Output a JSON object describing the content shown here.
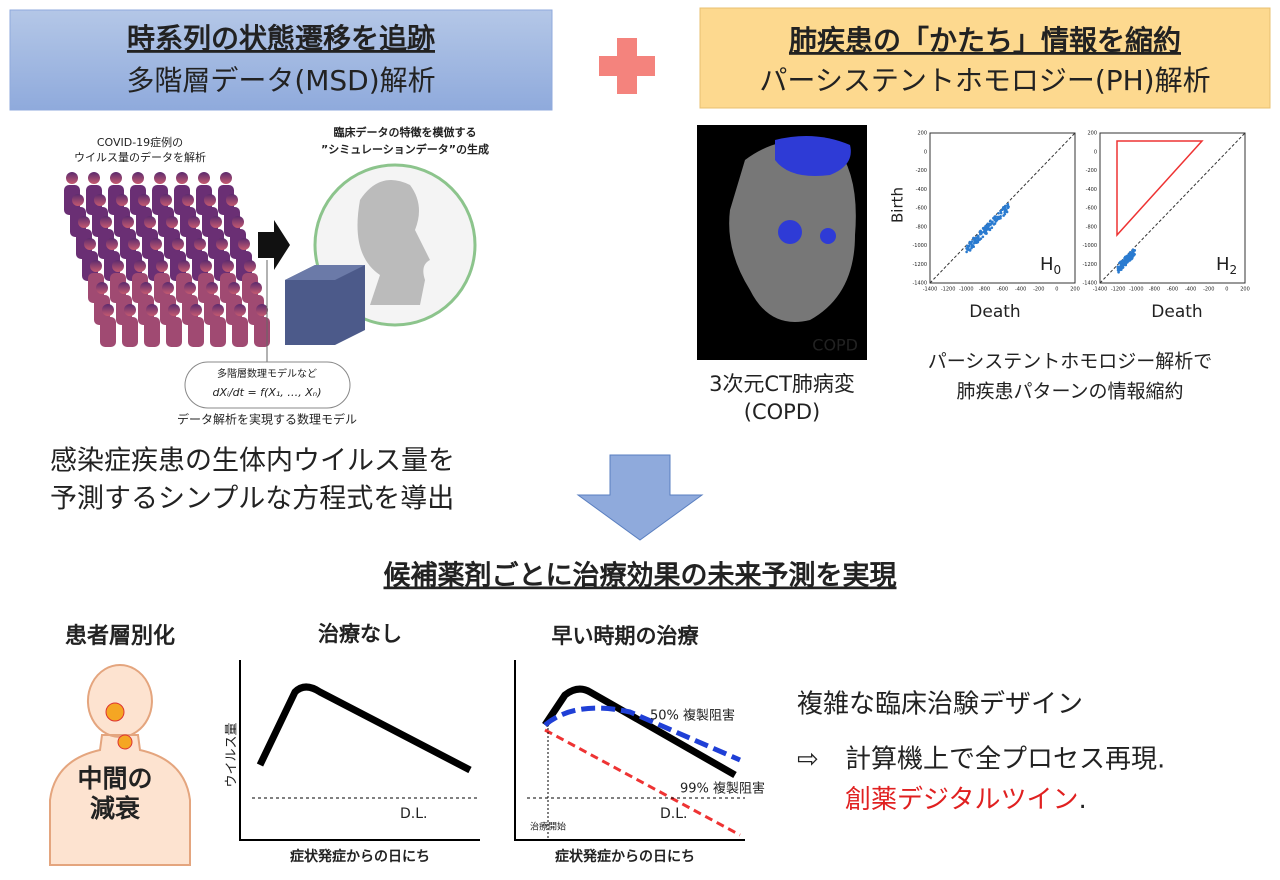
{
  "left_header": {
    "title": "時系列の状態遷移を追跡",
    "subtitle": "多階層データ(MSD)解析"
  },
  "right_header": {
    "title": "肺疾患の「かたち」情報を縮約",
    "subtitle": "パーシステントホモロジー(PH)解析"
  },
  "msd_figure": {
    "data_caption": [
      "COVID-19症例の",
      "ウイルス量のデータを解析"
    ],
    "sim_caption": [
      "臨床データの特徴を模倣する",
      "”シミュレーションデータ”の生成"
    ],
    "model_label": "多階層数理モデルなど",
    "equation": "dXᵢ/dt = f(X₁, …, Xₙ)",
    "model_caption": "データ解析を実現する数理モデル"
  },
  "msd_summary": [
    "感染症疾患の生体内ウイルス量を",
    "予測するシンプルな方程式を導出"
  ],
  "ct": {
    "image_label": "COPD",
    "caption": [
      "3次元CT肺病変",
      "(COPD)"
    ]
  },
  "ph": {
    "y_label": "Birth",
    "x_label": "Death",
    "xticks": [
      -1400,
      -1200,
      -1000,
      -800,
      -600,
      -400,
      -200,
      0,
      200
    ],
    "yticks": [
      200,
      0,
      -200,
      -400,
      -600,
      -800,
      -1000,
      -1200,
      -1400
    ],
    "panels": [
      {
        "label": "H",
        "sub": "0"
      },
      {
        "label": "H",
        "sub": "2"
      }
    ],
    "caption": [
      "パーシステントホモロジー解析で",
      "肺疾患パターンの情報縮約"
    ]
  },
  "conclusion": "候補薬剤ごとに治療効果の未来予測を実現",
  "stratification": {
    "title": "患者層別化",
    "body_label": [
      "中間の",
      "減衰"
    ]
  },
  "charts": [
    {
      "title": "治療なし",
      "y_label": "ウイルス量",
      "x_label": "症状発症からの日にち",
      "dl": "D.L."
    },
    {
      "title": "早い時期の治療",
      "x_label": "症状発症からの日にち",
      "dl": "D.L.",
      "start": "治療開始",
      "series": [
        "50% 複製阻害",
        "99% 複製阻害"
      ]
    }
  ],
  "digital_twin": {
    "line1": "複雑な臨床治験デザイン",
    "arrow": "⇨",
    "line2": "計算機上で全プロセス再現.",
    "line3": "創薬デジタルツイン",
    "period": "."
  }
}
